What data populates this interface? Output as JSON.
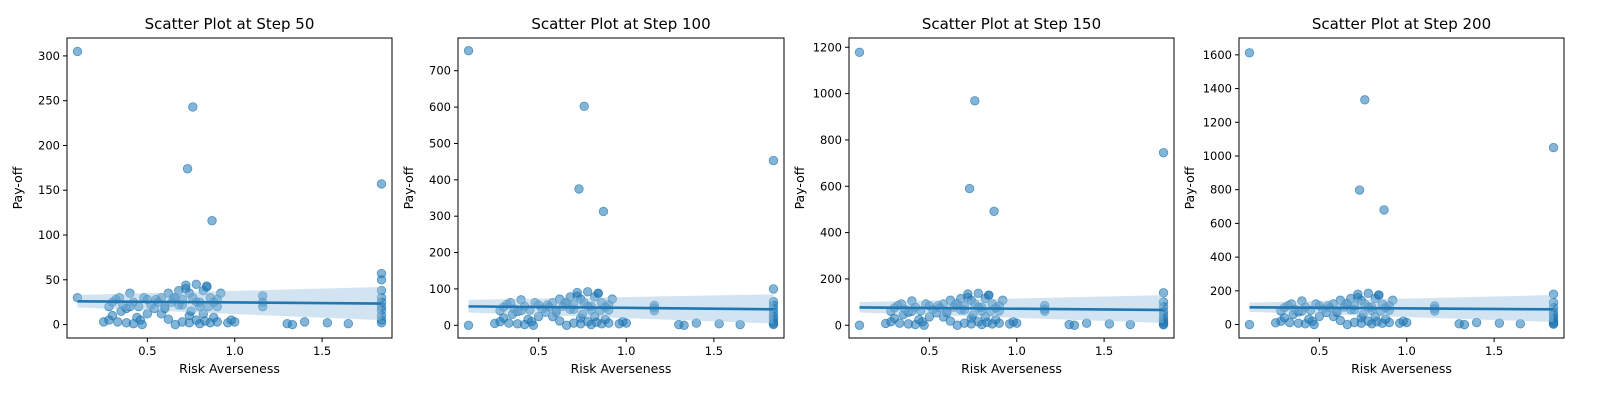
{
  "colors": {
    "series": "#1f77b4",
    "band": "#9cc3e0"
  },
  "chart_data": [
    {
      "type": "scatter",
      "title": "Scatter Plot at Step 50",
      "xlabel": "Risk Averseness",
      "ylabel": "Pay-off",
      "xlim": [
        0.04,
        1.9
      ],
      "ylim": [
        -15,
        320
      ],
      "xticks": [
        0.5,
        1.0,
        1.5
      ],
      "xtick_labels": [
        "0.5",
        "1.0",
        "1.5"
      ],
      "yticks": [
        0,
        50,
        100,
        150,
        200,
        250,
        300
      ],
      "ytick_labels": [
        "0",
        "50",
        "100",
        "150",
        "200",
        "250",
        "300"
      ],
      "x": [
        0.1,
        0.1,
        0.76,
        0.73,
        0.87,
        1.84,
        1.84,
        1.84,
        1.84,
        1.84,
        1.84,
        1.84,
        1.84,
        1.84,
        1.84,
        1.84,
        0.25,
        0.28,
        0.3,
        0.32,
        0.34,
        0.36,
        0.38,
        0.4,
        0.42,
        0.45,
        0.48,
        0.5,
        0.52,
        0.54,
        0.56,
        0.58,
        0.6,
        0.62,
        0.64,
        0.66,
        0.68,
        0.7,
        0.72,
        0.74,
        0.76,
        0.78,
        0.8,
        0.82,
        0.84,
        0.86,
        0.88,
        0.9,
        0.92,
        0.3,
        0.35,
        0.4,
        0.5,
        0.55,
        0.6,
        0.65,
        0.7,
        0.75,
        0.8,
        0.85,
        0.9,
        0.72,
        0.78,
        0.84,
        0.68,
        0.74,
        0.82,
        0.88,
        0.62,
        0.58,
        0.46,
        0.44,
        0.98,
        1.0,
        1.16,
        1.16,
        1.16,
        0.28,
        0.33,
        0.38,
        0.42,
        0.47,
        0.66,
        0.7,
        0.74,
        0.78,
        0.8,
        0.83,
        0.86,
        0.9,
        0.96,
        1.3,
        1.33,
        1.4,
        1.53,
        1.65
      ],
      "y": [
        305,
        30,
        243,
        174,
        116,
        157,
        57,
        50,
        38,
        30,
        25,
        20,
        16,
        10,
        5,
        2,
        3,
        20,
        25,
        28,
        30,
        22,
        18,
        35,
        25,
        20,
        30,
        28,
        22,
        18,
        25,
        30,
        20,
        35,
        25,
        30,
        22,
        28,
        40,
        35,
        30,
        25,
        20,
        38,
        42,
        30,
        25,
        20,
        35,
        10,
        15,
        20,
        12,
        28,
        18,
        30,
        22,
        15,
        25,
        20,
        28,
        44,
        45,
        43,
        38,
        10,
        12,
        8,
        6,
        12,
        5,
        8,
        5,
        3,
        32,
        25,
        20,
        5,
        3,
        2,
        1,
        0,
        0,
        3,
        2,
        5,
        1,
        4,
        2,
        3,
        2,
        1,
        0,
        3,
        2,
        1
      ],
      "regression": {
        "x": [
          0.1,
          1.84
        ],
        "y": [
          26,
          23.5
        ],
        "ci_lower": [
          19,
          5
        ],
        "ci_upper": [
          33,
          42
        ]
      }
    },
    {
      "type": "scatter",
      "title": "Scatter Plot at Step 100",
      "xlabel": "Risk Averseness",
      "ylabel": "Pay-off",
      "xlim": [
        0.04,
        1.9
      ],
      "ylim": [
        -35,
        790
      ],
      "xticks": [
        0.5,
        1.0,
        1.5
      ],
      "xtick_labels": [
        "0.5",
        "1.0",
        "1.5"
      ],
      "yticks": [
        0,
        100,
        200,
        300,
        400,
        500,
        600,
        700
      ],
      "ytick_labels": [
        "0",
        "100",
        "200",
        "300",
        "400",
        "500",
        "600",
        "700"
      ],
      "x": [
        0.1,
        0.1,
        0.76,
        0.73,
        0.87,
        1.84,
        1.84,
        1.84,
        1.84,
        1.84,
        1.84,
        1.84,
        1.84,
        1.84,
        1.84,
        1.84,
        0.25,
        0.28,
        0.3,
        0.32,
        0.34,
        0.36,
        0.38,
        0.4,
        0.42,
        0.45,
        0.48,
        0.5,
        0.52,
        0.54,
        0.56,
        0.58,
        0.6,
        0.62,
        0.64,
        0.66,
        0.68,
        0.7,
        0.72,
        0.74,
        0.76,
        0.78,
        0.8,
        0.82,
        0.84,
        0.86,
        0.88,
        0.9,
        0.92,
        0.3,
        0.35,
        0.4,
        0.5,
        0.55,
        0.6,
        0.65,
        0.7,
        0.75,
        0.8,
        0.85,
        0.9,
        0.72,
        0.78,
        0.84,
        0.68,
        0.74,
        0.82,
        0.88,
        0.62,
        0.58,
        0.46,
        0.44,
        0.98,
        1.0,
        1.16,
        1.16,
        1.16,
        0.28,
        0.33,
        0.38,
        0.42,
        0.47,
        0.66,
        0.7,
        0.74,
        0.78,
        0.8,
        0.83,
        0.86,
        0.9,
        0.96,
        1.3,
        1.33,
        1.4,
        1.53,
        1.65
      ],
      "y": [
        755,
        0,
        602,
        375,
        313,
        453,
        100,
        65,
        55,
        45,
        35,
        25,
        18,
        10,
        5,
        2,
        5,
        40,
        50,
        58,
        62,
        45,
        38,
        70,
        52,
        42,
        62,
        56,
        45,
        36,
        50,
        62,
        40,
        72,
        52,
        62,
        44,
        56,
        80,
        72,
        62,
        52,
        42,
        78,
        88,
        62,
        50,
        42,
        72,
        20,
        30,
        40,
        24,
        56,
        36,
        62,
        44,
        30,
        52,
        40,
        56,
        90,
        92,
        88,
        78,
        20,
        24,
        16,
        12,
        24,
        10,
        16,
        10,
        6,
        55,
        48,
        40,
        10,
        6,
        4,
        2,
        0,
        0,
        6,
        4,
        10,
        2,
        8,
        4,
        6,
        4,
        2,
        0,
        6,
        4,
        2
      ],
      "regression": {
        "x": [
          0.1,
          1.84
        ],
        "y": [
          52,
          44
        ],
        "ci_lower": [
          35,
          5
        ],
        "ci_upper": [
          70,
          85
        ]
      }
    },
    {
      "type": "scatter",
      "title": "Scatter Plot at Step 150",
      "xlabel": "Risk Averseness",
      "ylabel": "Pay-off",
      "xlim": [
        0.04,
        1.9
      ],
      "ylim": [
        -55,
        1240
      ],
      "xticks": [
        0.5,
        1.0,
        1.5
      ],
      "xtick_labels": [
        "0.5",
        "1.0",
        "1.5"
      ],
      "yticks": [
        0,
        200,
        400,
        600,
        800,
        1000,
        1200
      ],
      "ytick_labels": [
        "0",
        "200",
        "400",
        "600",
        "800",
        "1000",
        "1200"
      ],
      "x": [
        0.1,
        0.1,
        0.76,
        0.73,
        0.87,
        1.84,
        1.84,
        1.84,
        1.84,
        1.84,
        1.84,
        1.84,
        1.84,
        1.84,
        1.84,
        1.84,
        0.25,
        0.28,
        0.3,
        0.32,
        0.34,
        0.36,
        0.38,
        0.4,
        0.42,
        0.45,
        0.48,
        0.5,
        0.52,
        0.54,
        0.56,
        0.58,
        0.6,
        0.62,
        0.64,
        0.66,
        0.68,
        0.7,
        0.72,
        0.74,
        0.76,
        0.78,
        0.8,
        0.82,
        0.84,
        0.86,
        0.88,
        0.9,
        0.92,
        0.3,
        0.35,
        0.4,
        0.5,
        0.55,
        0.6,
        0.65,
        0.7,
        0.75,
        0.8,
        0.85,
        0.9,
        0.72,
        0.78,
        0.84,
        0.68,
        0.74,
        0.82,
        0.88,
        0.62,
        0.58,
        0.46,
        0.44,
        0.98,
        1.0,
        1.16,
        1.16,
        1.16,
        0.28,
        0.33,
        0.38,
        0.42,
        0.47,
        0.66,
        0.7,
        0.74,
        0.78,
        0.8,
        0.83,
        0.86,
        0.9,
        0.96,
        1.3,
        1.33,
        1.4,
        1.53,
        1.65
      ],
      "y": [
        1178,
        0,
        969,
        590,
        492,
        745,
        140,
        100,
        80,
        60,
        45,
        30,
        20,
        12,
        5,
        2,
        8,
        60,
        75,
        85,
        92,
        68,
        56,
        105,
        78,
        62,
        92,
        84,
        68,
        54,
        75,
        92,
        60,
        108,
        78,
        92,
        66,
        84,
        120,
        108,
        92,
        78,
        62,
        116,
        130,
        92,
        75,
        62,
        108,
        30,
        45,
        60,
        36,
        84,
        54,
        92,
        66,
        45,
        78,
        60,
        84,
        135,
        138,
        130,
        116,
        30,
        36,
        24,
        18,
        36,
        15,
        24,
        15,
        9,
        85,
        70,
        60,
        15,
        9,
        6,
        3,
        0,
        0,
        9,
        6,
        15,
        3,
        12,
        6,
        9,
        6,
        3,
        0,
        9,
        6,
        3
      ],
      "regression": {
        "x": [
          0.1,
          1.84
        ],
        "y": [
          77,
          66
        ],
        "ci_lower": [
          55,
          10
        ],
        "ci_upper": [
          100,
          130
        ]
      }
    },
    {
      "type": "scatter",
      "title": "Scatter Plot at Step 200",
      "xlabel": "Risk Averseness",
      "ylabel": "Pay-off",
      "xlim": [
        0.04,
        1.9
      ],
      "ylim": [
        -80,
        1700
      ],
      "xticks": [
        0.5,
        1.0,
        1.5
      ],
      "xtick_labels": [
        "0.5",
        "1.0",
        "1.5"
      ],
      "yticks": [
        0,
        200,
        400,
        600,
        800,
        1000,
        1200,
        1400,
        1600
      ],
      "ytick_labels": [
        "0",
        "200",
        "400",
        "600",
        "800",
        "1000",
        "1200",
        "1400",
        "1600"
      ],
      "x": [
        0.1,
        0.1,
        0.76,
        0.73,
        0.87,
        1.84,
        1.84,
        1.84,
        1.84,
        1.84,
        1.84,
        1.84,
        1.84,
        1.84,
        1.84,
        1.84,
        0.25,
        0.28,
        0.3,
        0.32,
        0.34,
        0.36,
        0.38,
        0.4,
        0.42,
        0.45,
        0.48,
        0.5,
        0.52,
        0.54,
        0.56,
        0.58,
        0.6,
        0.62,
        0.64,
        0.66,
        0.68,
        0.7,
        0.72,
        0.74,
        0.76,
        0.78,
        0.8,
        0.82,
        0.84,
        0.86,
        0.88,
        0.9,
        0.92,
        0.3,
        0.35,
        0.4,
        0.5,
        0.55,
        0.6,
        0.65,
        0.7,
        0.75,
        0.8,
        0.85,
        0.9,
        0.72,
        0.78,
        0.84,
        0.68,
        0.74,
        0.82,
        0.88,
        0.62,
        0.58,
        0.46,
        0.44,
        0.98,
        1.0,
        1.16,
        1.16,
        1.16,
        0.28,
        0.33,
        0.38,
        0.42,
        0.47,
        0.66,
        0.7,
        0.74,
        0.78,
        0.8,
        0.83,
        0.86,
        0.9,
        0.96,
        1.3,
        1.33,
        1.4,
        1.53,
        1.65
      ],
      "y": [
        1612,
        0,
        1333,
        798,
        680,
        1050,
        180,
        130,
        100,
        75,
        55,
        40,
        25,
        15,
        6,
        2,
        10,
        80,
        100,
        112,
        122,
        90,
        75,
        140,
        104,
        84,
        122,
        112,
        90,
        72,
        100,
        122,
        80,
        144,
        104,
        122,
        88,
        112,
        160,
        144,
        122,
        104,
        84,
        155,
        175,
        122,
        100,
        84,
        144,
        40,
        60,
        80,
        48,
        112,
        72,
        122,
        88,
        60,
        104,
        80,
        112,
        180,
        185,
        175,
        155,
        40,
        48,
        32,
        24,
        48,
        20,
        32,
        20,
        12,
        110,
        95,
        80,
        20,
        12,
        8,
        4,
        0,
        0,
        12,
        8,
        20,
        4,
        16,
        8,
        12,
        8,
        4,
        0,
        12,
        8,
        4
      ],
      "regression": {
        "x": [
          0.1,
          1.84
        ],
        "y": [
          102,
          90
        ],
        "ci_lower": [
          75,
          15
        ],
        "ci_upper": [
          130,
          175
        ]
      }
    }
  ]
}
